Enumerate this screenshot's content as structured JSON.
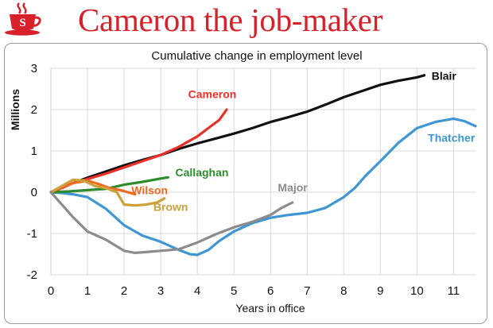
{
  "headline": "Cameron the job-maker",
  "logo": {
    "icon": "coffee-cup-logo-icon",
    "letter": "S",
    "color": "#d6212a"
  },
  "chart_data": {
    "type": "line",
    "title": "Cumulative change in employment level",
    "xlabel": "Years in office",
    "ylabel": "Millions",
    "xlim": [
      0,
      11.6
    ],
    "ylim": [
      -2,
      3
    ],
    "xticks": [
      "0",
      "1",
      "2",
      "3",
      "4",
      "5",
      "6",
      "7",
      "8",
      "9",
      "10",
      "11"
    ],
    "yticks": [
      "-2",
      "-1",
      "0",
      "1",
      "2",
      "3"
    ],
    "grid": true,
    "series": [
      {
        "name": "Blair",
        "color": "#111111",
        "label_at": [
          10.4,
          2.72
        ],
        "x": [
          0,
          0.3,
          0.6,
          1,
          1.5,
          2,
          2.5,
          3,
          3.5,
          4,
          4.5,
          5,
          5.5,
          6,
          6.5,
          7,
          7.5,
          8,
          8.5,
          9,
          9.5,
          10,
          10.2
        ],
        "y": [
          0,
          0.12,
          0.22,
          0.35,
          0.5,
          0.65,
          0.78,
          0.9,
          1.05,
          1.18,
          1.3,
          1.42,
          1.55,
          1.7,
          1.82,
          1.95,
          2.12,
          2.3,
          2.45,
          2.6,
          2.7,
          2.78,
          2.83
        ]
      },
      {
        "name": "Thatcher",
        "color": "#3f96d2",
        "label_at": [
          10.3,
          1.22
        ],
        "x": [
          0,
          0.3,
          0.6,
          1,
          1.5,
          2,
          2.5,
          3,
          3.5,
          3.8,
          4,
          4.3,
          4.6,
          5,
          5.5,
          6,
          6.5,
          7,
          7.5,
          8,
          8.3,
          8.6,
          9,
          9.5,
          10,
          10.5,
          11,
          11.3,
          11.6
        ],
        "y": [
          0,
          -0.02,
          -0.05,
          -0.12,
          -0.4,
          -0.8,
          -1.05,
          -1.2,
          -1.4,
          -1.5,
          -1.52,
          -1.4,
          -1.18,
          -0.95,
          -0.75,
          -0.62,
          -0.55,
          -0.5,
          -0.38,
          -0.12,
          0.1,
          0.4,
          0.75,
          1.2,
          1.55,
          1.7,
          1.78,
          1.72,
          1.6
        ]
      },
      {
        "name": "Cameron",
        "color": "#e8302a",
        "label_at": [
          3.75,
          2.28
        ],
        "x": [
          0,
          0.3,
          0.6,
          1,
          1.5,
          2,
          2.5,
          3,
          3.5,
          4,
          4.3,
          4.6,
          4.8
        ],
        "y": [
          0,
          0.1,
          0.22,
          0.32,
          0.45,
          0.6,
          0.75,
          0.9,
          1.1,
          1.35,
          1.55,
          1.75,
          2.0
        ]
      },
      {
        "name": "Callaghan",
        "color": "#2e8b2e",
        "label_at": [
          3.4,
          0.38
        ],
        "x": [
          0,
          0.5,
          1,
          1.5,
          2,
          2.5,
          3,
          3.2
        ],
        "y": [
          0,
          0.02,
          0.05,
          0.08,
          0.18,
          0.25,
          0.33,
          0.36
        ]
      },
      {
        "name": "Wilson",
        "color": "#ee6a22",
        "label_at": [
          2.2,
          -0.05
        ],
        "x": [
          0,
          0.3,
          0.6,
          1,
          1.3,
          1.6,
          1.9,
          2.1,
          2.3
        ],
        "y": [
          0,
          0.12,
          0.22,
          0.28,
          0.2,
          0.1,
          0.05,
          0,
          -0.05
        ]
      },
      {
        "name": "Brown",
        "color": "#cba13a",
        "label_at": [
          2.8,
          -0.45
        ],
        "x": [
          0,
          0.3,
          0.6,
          0.9,
          1.2,
          1.5,
          1.8,
          2,
          2.3,
          2.6,
          2.9,
          3.1
        ],
        "y": [
          0,
          0.15,
          0.3,
          0.28,
          0.15,
          0.1,
          0,
          -0.3,
          -0.32,
          -0.3,
          -0.25,
          -0.15
        ]
      },
      {
        "name": "Major",
        "color": "#8c8c8c",
        "label_at": [
          6.2,
          0.02
        ],
        "x": [
          0,
          0.3,
          0.6,
          1,
          1.5,
          2,
          2.3,
          2.6,
          3,
          3.5,
          4,
          4.5,
          5,
          5.5,
          6,
          6.3,
          6.6
        ],
        "y": [
          0,
          -0.3,
          -0.6,
          -0.95,
          -1.15,
          -1.42,
          -1.47,
          -1.45,
          -1.42,
          -1.38,
          -1.22,
          -1.02,
          -0.85,
          -0.72,
          -0.55,
          -0.38,
          -0.25
        ]
      }
    ]
  }
}
